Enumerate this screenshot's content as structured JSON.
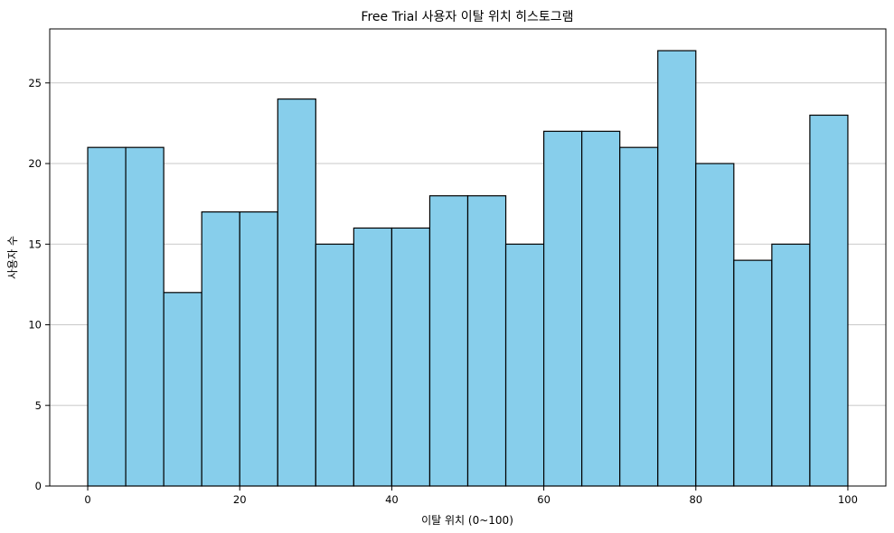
{
  "chart_data": {
    "type": "bar",
    "title": "Free Trial 사용자 이탈 위치 히스토그램",
    "xlabel": "이탈 위치 (0~100)",
    "ylabel": "사용자 수",
    "bin_edges": [
      0,
      5,
      10,
      15,
      20,
      25,
      30,
      35,
      40,
      45,
      50,
      55,
      60,
      65,
      70,
      75,
      80,
      85,
      90,
      95,
      100
    ],
    "values": [
      21,
      21,
      12,
      17,
      17,
      24,
      15,
      16,
      16,
      18,
      18,
      15,
      22,
      22,
      21,
      27,
      20,
      14,
      15,
      23
    ],
    "xlim": [
      -5,
      105
    ],
    "ylim": [
      0,
      28.35
    ],
    "xticks": [
      0,
      20,
      40,
      60,
      80,
      100
    ],
    "yticks": [
      0,
      5,
      10,
      15,
      20,
      25
    ],
    "grid": "y",
    "bar_color": "#87CEEB",
    "edge_color": "#000000",
    "grid_color": "#c8c8c8"
  }
}
